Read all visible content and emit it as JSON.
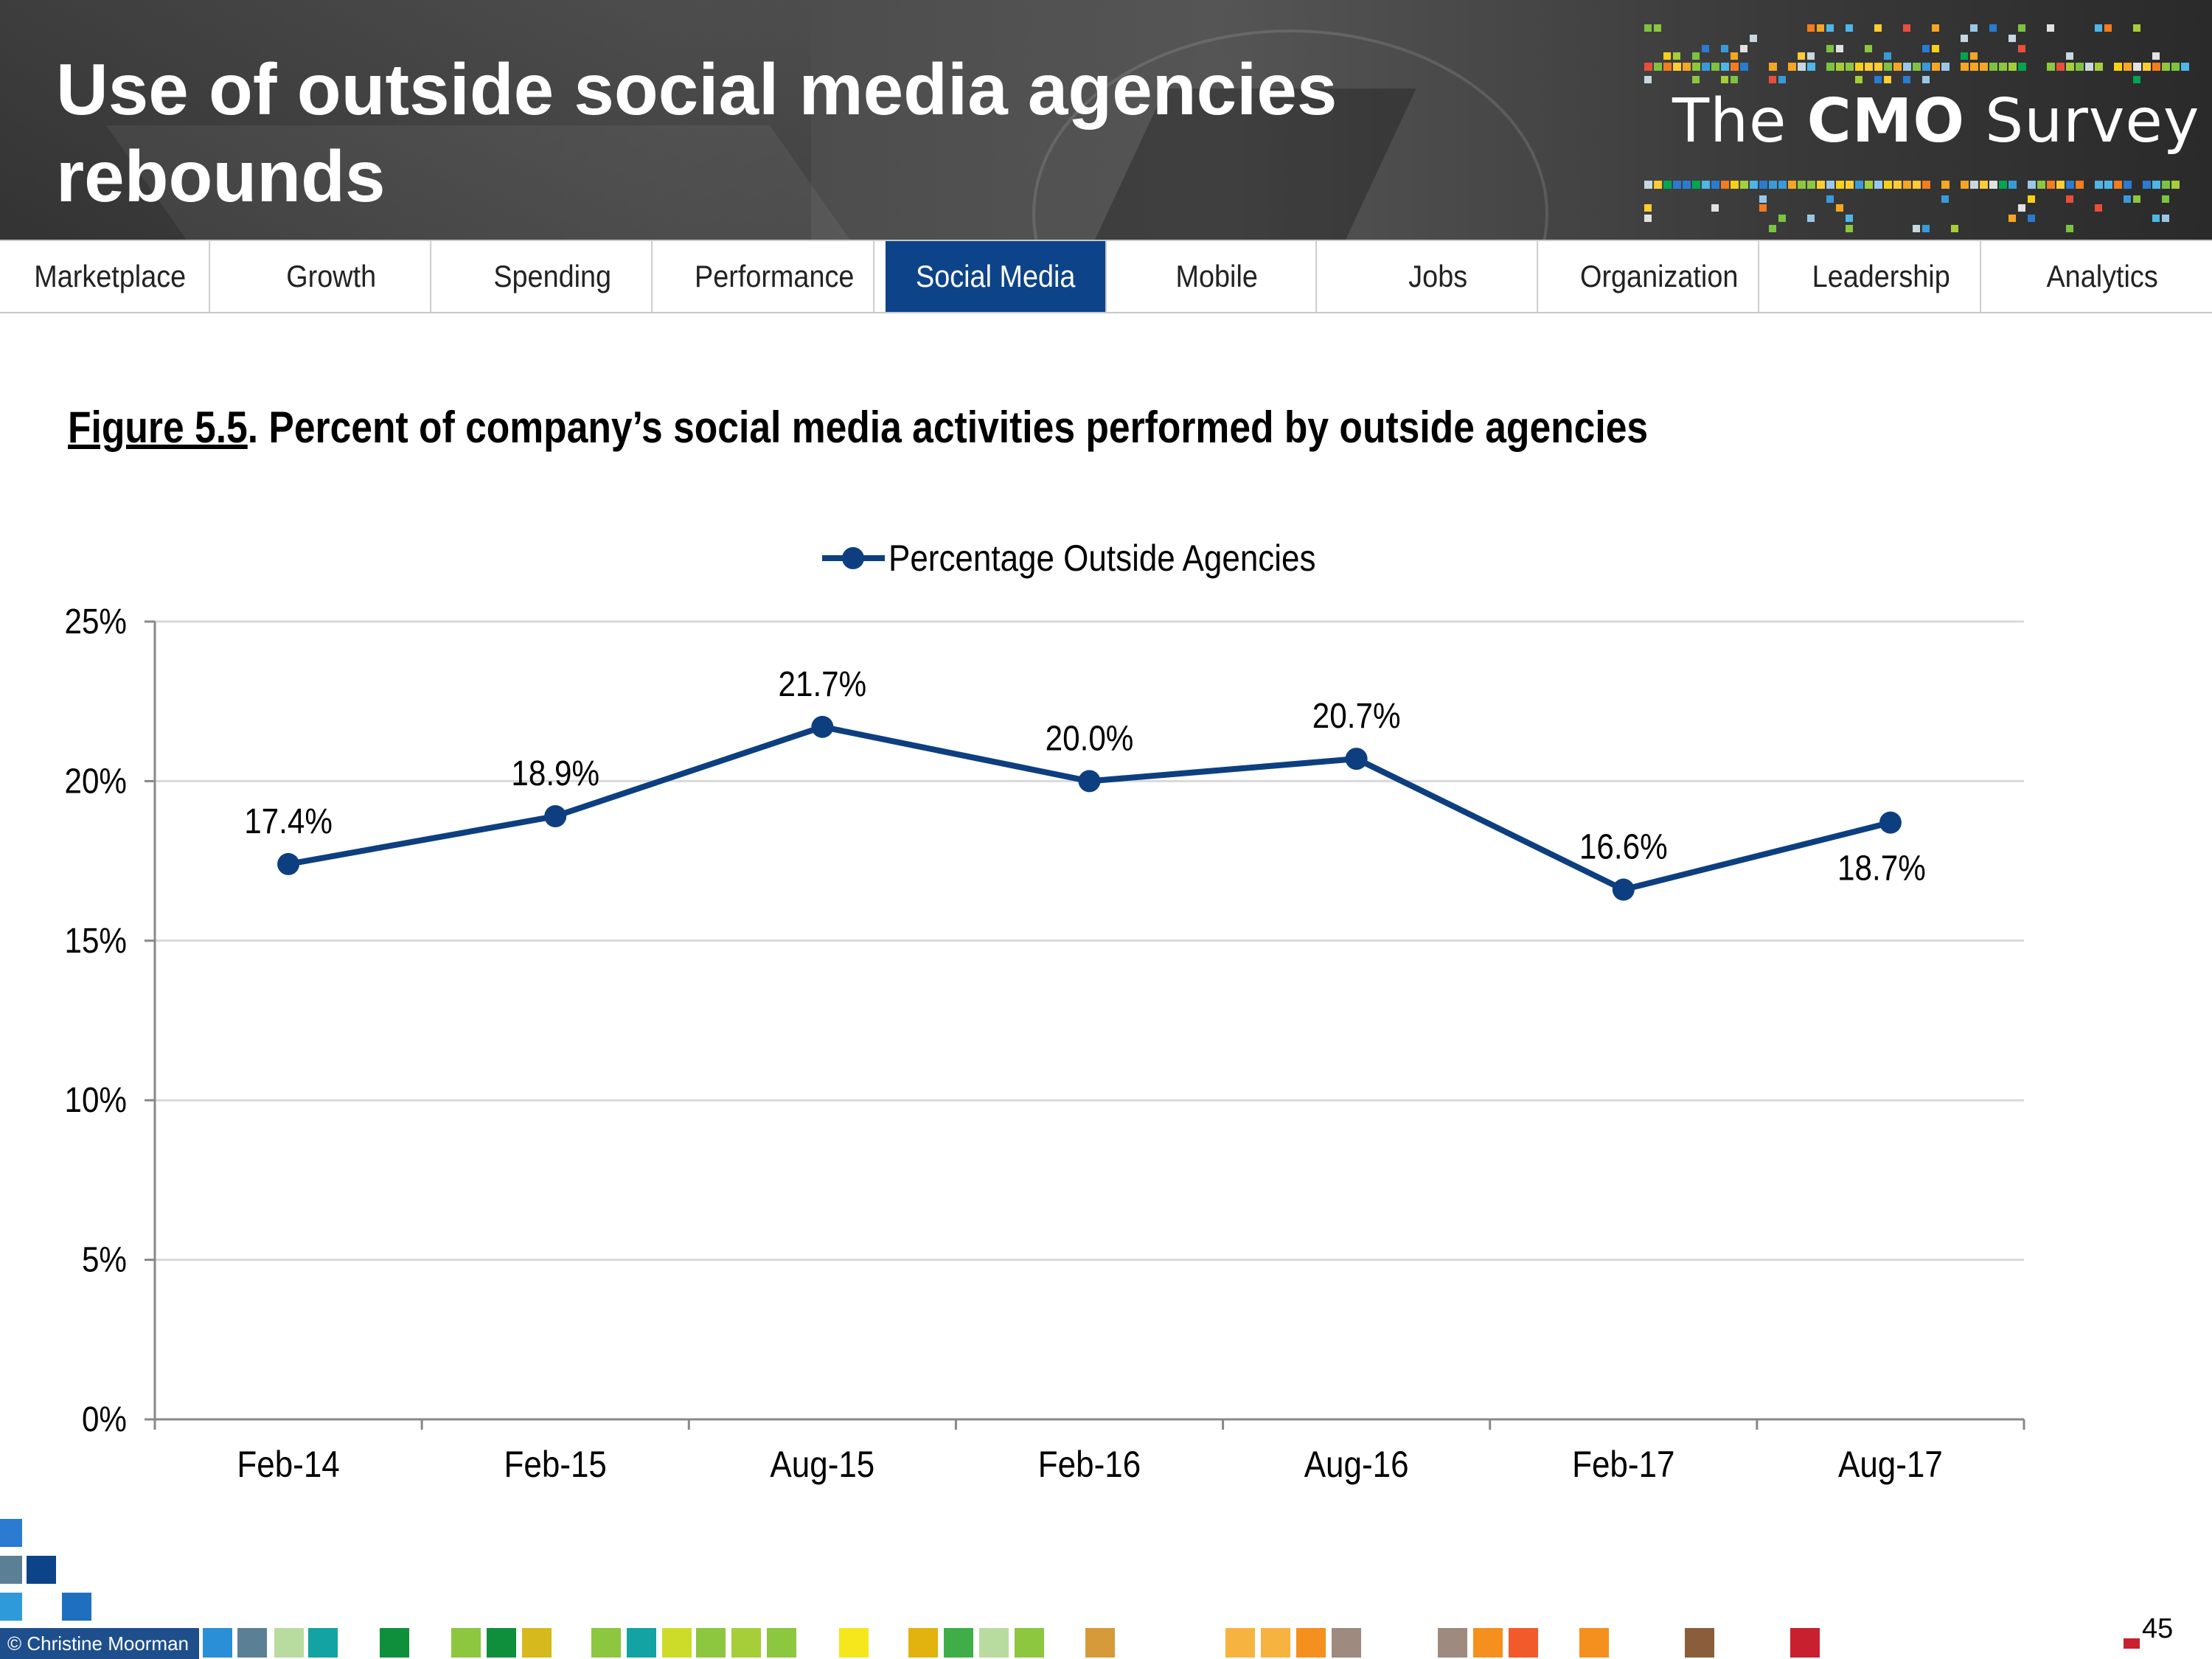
{
  "header": {
    "title": "Use of outside social media agencies rebounds",
    "logo": {
      "prefix": "The ",
      "brand": "CMO",
      "suffix": " Survey"
    }
  },
  "nav": {
    "tabs": [
      {
        "label": "Marketplace"
      },
      {
        "label": "Growth"
      },
      {
        "label": "Spending"
      },
      {
        "label": "Performance"
      },
      {
        "label": "Social Media"
      },
      {
        "label": "Mobile"
      },
      {
        "label": "Jobs"
      },
      {
        "label": "Organization"
      },
      {
        "label": "Leadership"
      },
      {
        "label": "Analytics"
      }
    ],
    "active": "Social Media",
    "active_color": "#0d4389"
  },
  "figure": {
    "label": "Figure 5.5",
    "caption": ".  Percent of company’s social media activities performed by outside agencies"
  },
  "chart_data": {
    "type": "line",
    "categories": [
      "Feb-14",
      "Feb-15",
      "Aug-15",
      "Feb-16",
      "Aug-16",
      "Feb-17",
      "Aug-17"
    ],
    "series": [
      {
        "name": "Percentage Outside Agencies",
        "values": [
          17.4,
          18.9,
          21.7,
          20.0,
          20.7,
          16.6,
          18.7
        ],
        "labels": [
          "17.4%",
          "18.9%",
          "21.7%",
          "20.0%",
          "20.7%",
          "16.6%",
          "18.7%"
        ],
        "color": "#0d3f80"
      }
    ],
    "ylim": [
      0,
      25
    ],
    "yticks": [
      0,
      5,
      10,
      15,
      20,
      25
    ],
    "ytick_labels": [
      "0%",
      "5%",
      "10%",
      "15%",
      "20%",
      "25%"
    ],
    "xlabel": "",
    "ylabel": "",
    "grid": true,
    "legend": "top-center"
  },
  "footer": {
    "copyright": "© Christine Moorman",
    "page_number": "45"
  }
}
